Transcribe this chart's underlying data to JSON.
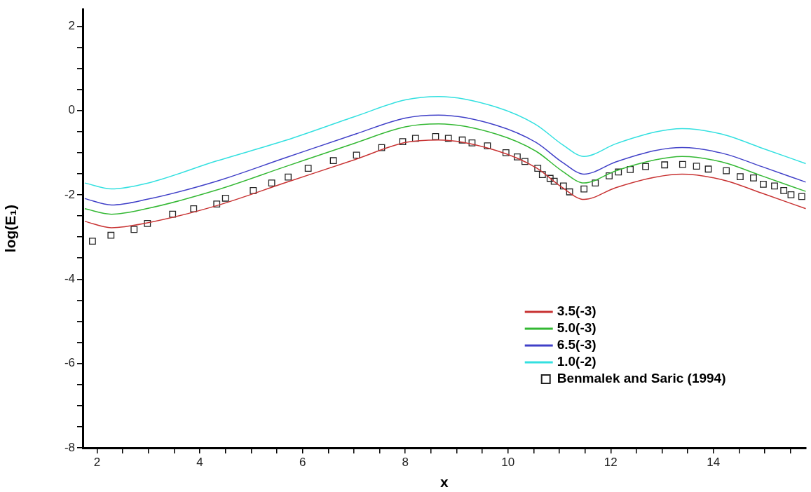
{
  "chart_data": {
    "type": "line",
    "xlabel": "x",
    "ylabel": "log(E₁)",
    "xlim": [
      1.72,
      15.8
    ],
    "xticks": [
      {
        "value": 2,
        "label": "2"
      },
      {
        "value": 2.5,
        "label": null
      },
      {
        "value": 3,
        "label": null
      },
      {
        "value": 3.5,
        "label": null
      },
      {
        "value": 4,
        "label": "4"
      },
      {
        "value": 4.5,
        "label": null
      },
      {
        "value": 5,
        "label": null
      },
      {
        "value": 5.5,
        "label": null
      },
      {
        "value": 6,
        "label": "6"
      },
      {
        "value": 6.5,
        "label": null
      },
      {
        "value": 7,
        "label": null
      },
      {
        "value": 7.5,
        "label": null
      },
      {
        "value": 8,
        "label": "8"
      },
      {
        "value": 8.5,
        "label": null
      },
      {
        "value": 9,
        "label": null
      },
      {
        "value": 9.5,
        "label": null
      },
      {
        "value": 10,
        "label": "10"
      },
      {
        "value": 10.5,
        "label": null
      },
      {
        "value": 11,
        "label": null
      },
      {
        "value": 11.5,
        "label": null
      },
      {
        "value": 12,
        "label": "12"
      },
      {
        "value": 12.5,
        "label": null
      },
      {
        "value": 13,
        "label": null
      },
      {
        "value": 13.5,
        "label": null
      },
      {
        "value": 14,
        "label": "14"
      },
      {
        "value": 14.5,
        "label": null
      },
      {
        "value": 15,
        "label": null
      },
      {
        "value": 15.5,
        "label": null
      }
    ],
    "ylim": [
      -8,
      2.4
    ],
    "yticks": [
      {
        "value": -8,
        "label": "-8"
      },
      {
        "value": -7.5,
        "label": null
      },
      {
        "value": -7,
        "label": null
      },
      {
        "value": -6.5,
        "label": null
      },
      {
        "value": -6,
        "label": "-6"
      },
      {
        "value": -5.5,
        "label": null
      },
      {
        "value": -5,
        "label": null
      },
      {
        "value": -4.5,
        "label": null
      },
      {
        "value": -4,
        "label": "-4"
      },
      {
        "value": -3.5,
        "label": null
      },
      {
        "value": -3,
        "label": null
      },
      {
        "value": -2.5,
        "label": null
      },
      {
        "value": -2,
        "label": "-2"
      },
      {
        "value": -1.5,
        "label": null
      },
      {
        "value": -1,
        "label": null
      },
      {
        "value": -0.5,
        "label": null
      },
      {
        "value": 0,
        "label": "0"
      },
      {
        "value": 0.5,
        "label": null
      },
      {
        "value": 1,
        "label": null
      },
      {
        "value": 1.5,
        "label": null
      },
      {
        "value": 2,
        "label": "2"
      }
    ],
    "grid": false,
    "legend": "bottom right",
    "series": [
      {
        "name": "3.5(-3)",
        "color": "#c83232",
        "marker": "none",
        "x": [
          1.76,
          2.28,
          2.96,
          4.32,
          5.67,
          7.03,
          8.0,
          8.65,
          9.77,
          10.55,
          11.06,
          11.48,
          12.1,
          12.87,
          13.39,
          14.16,
          14.94,
          15.8
        ],
        "values": [
          -2.63,
          -2.78,
          -2.67,
          -2.26,
          -1.71,
          -1.16,
          -0.76,
          -0.7,
          -0.95,
          -1.36,
          -1.83,
          -2.11,
          -1.83,
          -1.58,
          -1.51,
          -1.64,
          -1.96,
          -2.33
        ]
      },
      {
        "name": "5.0(-3)",
        "color": "#33b833",
        "marker": "none",
        "x": [
          1.76,
          2.28,
          2.96,
          4.32,
          5.67,
          7.03,
          8.0,
          8.65,
          9.77,
          10.55,
          11.06,
          11.48,
          12.1,
          12.87,
          13.39,
          14.16,
          14.94,
          15.8
        ],
        "values": [
          -2.33,
          -2.46,
          -2.33,
          -1.89,
          -1.33,
          -0.77,
          -0.39,
          -0.32,
          -0.56,
          -0.97,
          -1.44,
          -1.72,
          -1.43,
          -1.17,
          -1.09,
          -1.22,
          -1.55,
          -1.92
        ]
      },
      {
        "name": "6.5(-3)",
        "color": "#4040c8",
        "marker": "none",
        "x": [
          1.76,
          2.28,
          2.96,
          4.32,
          5.67,
          7.03,
          8.0,
          8.65,
          9.77,
          10.55,
          11.06,
          11.48,
          12.1,
          12.87,
          13.39,
          14.16,
          14.94,
          15.8
        ],
        "values": [
          -2.09,
          -2.24,
          -2.11,
          -1.68,
          -1.12,
          -0.56,
          -0.18,
          -0.11,
          -0.35,
          -0.76,
          -1.23,
          -1.51,
          -1.22,
          -0.95,
          -0.88,
          -1.01,
          -1.33,
          -1.7
        ]
      },
      {
        "name": "1.0(-2)",
        "color": "#33e0e0",
        "marker": "none",
        "x": [
          1.76,
          2.28,
          2.96,
          4.32,
          5.67,
          7.03,
          8.0,
          8.65,
          9.77,
          10.55,
          11.06,
          11.48,
          12.1,
          12.87,
          13.39,
          14.16,
          14.94,
          15.8
        ],
        "values": [
          -1.72,
          -1.86,
          -1.73,
          -1.2,
          -0.71,
          -0.14,
          0.25,
          0.33,
          0.08,
          -0.34,
          -0.81,
          -1.09,
          -0.79,
          -0.51,
          -0.43,
          -0.56,
          -0.89,
          -1.26
        ]
      },
      {
        "name": "Benmalek and Saric (1994)",
        "color": "#222222",
        "type": "scatter",
        "marker": "square",
        "x": [
          1.91,
          2.27,
          2.72,
          2.98,
          3.47,
          3.88,
          4.33,
          4.5,
          5.04,
          5.4,
          5.72,
          6.11,
          6.6,
          7.05,
          7.54,
          7.95,
          8.2,
          8.59,
          8.84,
          9.11,
          9.3,
          9.6,
          9.96,
          10.18,
          10.33,
          10.58,
          10.67,
          10.82,
          10.9,
          11.08,
          11.2,
          11.48,
          11.7,
          11.97,
          12.15,
          12.38,
          12.68,
          13.05,
          13.4,
          13.67,
          13.9,
          14.25,
          14.52,
          14.78,
          14.97,
          15.19,
          15.37,
          15.51,
          15.72
        ],
        "values": [
          -3.1,
          -2.96,
          -2.82,
          -2.68,
          -2.46,
          -2.33,
          -2.22,
          -2.08,
          -1.9,
          -1.72,
          -1.58,
          -1.37,
          -1.19,
          -1.06,
          -0.88,
          -0.74,
          -0.66,
          -0.62,
          -0.66,
          -0.7,
          -0.77,
          -0.84,
          -1.0,
          -1.1,
          -1.21,
          -1.37,
          -1.52,
          -1.61,
          -1.68,
          -1.79,
          -1.93,
          -1.86,
          -1.72,
          -1.55,
          -1.46,
          -1.4,
          -1.33,
          -1.29,
          -1.28,
          -1.32,
          -1.39,
          -1.43,
          -1.57,
          -1.6,
          -1.75,
          -1.79,
          -1.9,
          -2.0,
          -2.04
        ]
      }
    ]
  }
}
